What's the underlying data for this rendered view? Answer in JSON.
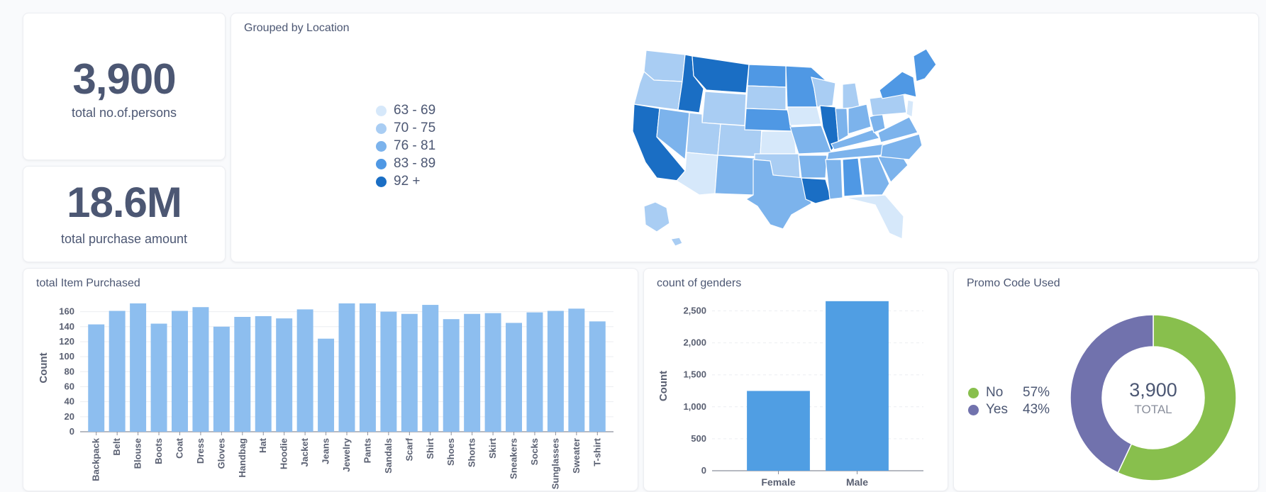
{
  "scalars": {
    "persons": {
      "value": "3,900",
      "label": "total no.of.persons"
    },
    "purchase": {
      "value": "18.6M",
      "label": "total purchase amount"
    }
  },
  "map": {
    "title": "Grouped by Location",
    "legend": [
      {
        "label": "63 - 69",
        "color": "#d6e8fa"
      },
      {
        "label": "70 - 75",
        "color": "#a9cdf3"
      },
      {
        "label": "76 - 81",
        "color": "#7cb3ec"
      },
      {
        "label": "83 - 89",
        "color": "#4f98e4"
      },
      {
        "label": "92 +",
        "color": "#1a6ec4"
      }
    ]
  },
  "chart_data": [
    {
      "id": "items",
      "type": "bar",
      "title": "total Item Purchased",
      "xlabel": "",
      "ylabel": "Count",
      "ylim": [
        0,
        170
      ],
      "yticks": [
        0,
        20,
        40,
        60,
        80,
        100,
        120,
        140,
        160
      ],
      "categories": [
        "Backpack",
        "Belt",
        "Blouse",
        "Boots",
        "Coat",
        "Dress",
        "Gloves",
        "Handbag",
        "Hat",
        "Hoodie",
        "Jacket",
        "Jeans",
        "Jewelry",
        "Pants",
        "Sandals",
        "Scarf",
        "Shirt",
        "Shoes",
        "Shorts",
        "Skirt",
        "Sneakers",
        "Socks",
        "Sunglasses",
        "Sweater",
        "T-shirt"
      ],
      "values": [
        143,
        161,
        171,
        144,
        161,
        166,
        140,
        153,
        154,
        151,
        163,
        124,
        171,
        171,
        160,
        157,
        169,
        150,
        157,
        158,
        145,
        159,
        161,
        164,
        147
      ],
      "color": "#8dbeef"
    },
    {
      "id": "genders",
      "type": "bar",
      "title": "count of genders",
      "xlabel": "",
      "ylabel": "Count",
      "ylim": [
        0,
        2650
      ],
      "yticks": [
        0,
        500,
        1000,
        1500,
        2000,
        2500
      ],
      "ytick_labels": [
        "0",
        "500",
        "1,000",
        "1,500",
        "2,000",
        "2,500"
      ],
      "categories": [
        "Female",
        "Male"
      ],
      "values": [
        1248,
        2652
      ],
      "color": "#509ee3"
    },
    {
      "id": "promo",
      "type": "pie",
      "title": "Promo Code Used",
      "categories": [
        "No",
        "Yes"
      ],
      "values": [
        2223,
        1677
      ],
      "percent_labels": [
        "57%",
        "43%"
      ],
      "colors": [
        "#88bf4d",
        "#7172ad"
      ],
      "total_value": "3,900",
      "total_label": "TOTAL"
    }
  ]
}
